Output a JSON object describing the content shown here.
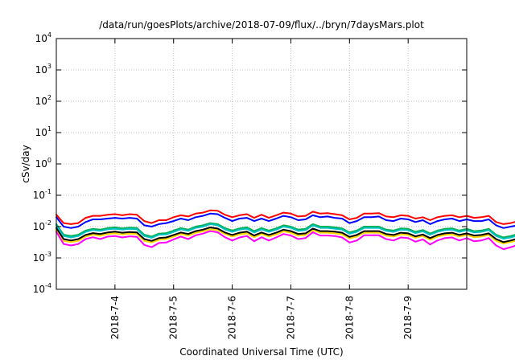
{
  "chart_data": {
    "type": "line",
    "title": "/data/run/goesPlots/archive/2018-07-09/flux/../bryn/7daysMars.plot",
    "xlabel": "Coordinated Universal Time (UTC)",
    "ylabel": "cSv/day",
    "yscale": "log",
    "ylim": [
      0.0001,
      10000
    ],
    "xlim": [
      "2018-07-03T00:00",
      "2018-07-09T23:59"
    ],
    "yticks": [
      {
        "base": "10",
        "exp": "4"
      },
      {
        "base": "10",
        "exp": "3"
      },
      {
        "base": "10",
        "exp": "2"
      },
      {
        "base": "10",
        "exp": "1"
      },
      {
        "base": "10",
        "exp": "0"
      },
      {
        "base": "10",
        "exp": "-1"
      },
      {
        "base": "10",
        "exp": "-2"
      },
      {
        "base": "10",
        "exp": "-3"
      },
      {
        "base": "10",
        "exp": "-4"
      }
    ],
    "xticks": [
      "2018-7-4",
      "2018-7-5",
      "2018-7-6",
      "2018-7-7",
      "2018-7-8",
      "2018-7-9"
    ],
    "grid": true,
    "x_start": "2018-07-03T00:00",
    "x_step_hours": 3,
    "series": [
      {
        "color": "#ff0000",
        "values": [
          0.024,
          0.013,
          0.012,
          0.013,
          0.019,
          0.022,
          0.022,
          0.024,
          0.025,
          0.023,
          0.025,
          0.024,
          0.015,
          0.013,
          0.016,
          0.016,
          0.02,
          0.023,
          0.021,
          0.026,
          0.028,
          0.033,
          0.032,
          0.024,
          0.02,
          0.023,
          0.025,
          0.019,
          0.024,
          0.019,
          0.023,
          0.028,
          0.026,
          0.021,
          0.022,
          0.03,
          0.026,
          0.027,
          0.025,
          0.023,
          0.017,
          0.019,
          0.026,
          0.026,
          0.027,
          0.021,
          0.02,
          0.023,
          0.022,
          0.018,
          0.02,
          0.016,
          0.02,
          0.022,
          0.023,
          0.02,
          0.022,
          0.019,
          0.02,
          0.022,
          0.014,
          0.012,
          0.013,
          0.015,
          0.02,
          0.022,
          0.026,
          0.023,
          0.016,
          0.016,
          0.023,
          0.021,
          0.019,
          0.016,
          0.019,
          0.016,
          0.016,
          0.02,
          0.018,
          0.022,
          0.02,
          0.016,
          0.016,
          0.014,
          0.019,
          0.016,
          0.018,
          0.015,
          0.016,
          0.019,
          0.02,
          0.017,
          0.013,
          0.012,
          0.014,
          0.018,
          0.021,
          0.02,
          0.022,
          0.021,
          0.017,
          0.02,
          0.016,
          0.018,
          0.018,
          0.02,
          0.018,
          0.02,
          0.017,
          0.02,
          0.018,
          0.016
        ]
      },
      {
        "color": "#0000ff",
        "values": [
          0.02,
          0.01,
          0.009,
          0.01,
          0.014,
          0.017,
          0.017,
          0.018,
          0.019,
          0.018,
          0.019,
          0.018,
          0.011,
          0.01,
          0.012,
          0.013,
          0.015,
          0.018,
          0.016,
          0.02,
          0.022,
          0.026,
          0.025,
          0.019,
          0.015,
          0.018,
          0.019,
          0.015,
          0.018,
          0.015,
          0.018,
          0.022,
          0.02,
          0.016,
          0.017,
          0.023,
          0.02,
          0.021,
          0.019,
          0.018,
          0.013,
          0.015,
          0.02,
          0.02,
          0.021,
          0.016,
          0.015,
          0.018,
          0.017,
          0.014,
          0.016,
          0.012,
          0.015,
          0.017,
          0.018,
          0.015,
          0.017,
          0.015,
          0.015,
          0.017,
          0.011,
          0.009,
          0.01,
          0.011,
          0.015,
          0.017,
          0.02,
          0.018,
          0.012,
          0.012,
          0.018,
          0.016,
          0.015,
          0.012,
          0.015,
          0.012,
          0.012,
          0.015,
          0.014,
          0.017,
          0.015,
          0.012,
          0.012,
          0.011,
          0.015,
          0.012,
          0.014,
          0.012,
          0.012,
          0.015,
          0.015,
          0.013,
          0.01,
          0.009,
          0.011,
          0.014,
          0.016,
          0.015,
          0.017,
          0.016,
          0.013,
          0.015,
          0.012,
          0.014,
          0.014,
          0.015,
          0.014,
          0.015,
          0.013,
          0.015,
          0.014,
          0.012
        ]
      },
      {
        "color": "#00b050",
        "values": [
          0.012,
          0.0055,
          0.005,
          0.0055,
          0.0075,
          0.0085,
          0.008,
          0.009,
          0.0095,
          0.0088,
          0.0093,
          0.009,
          0.0055,
          0.0048,
          0.006,
          0.0062,
          0.0075,
          0.009,
          0.008,
          0.01,
          0.011,
          0.013,
          0.012,
          0.009,
          0.0075,
          0.0088,
          0.0095,
          0.0072,
          0.009,
          0.0075,
          0.0088,
          0.011,
          0.01,
          0.008,
          0.0085,
          0.012,
          0.01,
          0.01,
          0.0095,
          0.0088,
          0.0065,
          0.0075,
          0.01,
          0.01,
          0.01,
          0.008,
          0.0075,
          0.0088,
          0.0085,
          0.0068,
          0.0078,
          0.006,
          0.0075,
          0.0085,
          0.0088,
          0.0075,
          0.0085,
          0.0072,
          0.0075,
          0.0085,
          0.0055,
          0.0045,
          0.005,
          0.0058,
          0.0075,
          0.0085,
          0.01,
          0.0088,
          0.0062,
          0.006,
          0.0088,
          0.008,
          0.0072,
          0.006,
          0.0072,
          0.006,
          0.006,
          0.0075,
          0.0068,
          0.0085,
          0.0075,
          0.006,
          0.006,
          0.0052,
          0.0072,
          0.006,
          0.0068,
          0.0058,
          0.006,
          0.0072,
          0.0075,
          0.0065,
          0.005,
          0.0045,
          0.0052,
          0.0068,
          0.008,
          0.0075,
          0.0085,
          0.008,
          0.0065,
          0.0075,
          0.006,
          0.0068,
          0.0068,
          0.0075,
          0.0068,
          0.0075,
          0.0065,
          0.0075,
          0.0068,
          0.006
        ]
      },
      {
        "color": "#00c0c0",
        "values": [
          0.011,
          0.005,
          0.0045,
          0.005,
          0.0068,
          0.0078,
          0.0073,
          0.0082,
          0.0086,
          0.008,
          0.0085,
          0.0082,
          0.005,
          0.0044,
          0.0055,
          0.0056,
          0.0068,
          0.0082,
          0.0073,
          0.0091,
          0.01,
          0.012,
          0.011,
          0.0082,
          0.0068,
          0.008,
          0.0086,
          0.0065,
          0.0082,
          0.0068,
          0.008,
          0.01,
          0.0091,
          0.0073,
          0.0077,
          0.011,
          0.0091,
          0.0091,
          0.0086,
          0.008,
          0.0059,
          0.0068,
          0.0091,
          0.0091,
          0.0091,
          0.0073,
          0.0068,
          0.008,
          0.0077,
          0.0062,
          0.0071,
          0.0055,
          0.0068,
          0.0077,
          0.008,
          0.0068,
          0.0077,
          0.0065,
          0.0068,
          0.0077,
          0.005,
          0.0041,
          0.0045,
          0.0053,
          0.0068,
          0.0077,
          0.0091,
          0.008,
          0.0056,
          0.0055,
          0.008,
          0.0073,
          0.0065,
          0.0055,
          0.0065,
          0.0055,
          0.0055,
          0.0068,
          0.0062,
          0.0077,
          0.0068,
          0.0055,
          0.0055,
          0.0047,
          0.0065,
          0.0055,
          0.0062,
          0.0053,
          0.0055,
          0.0065,
          0.0068,
          0.0059,
          0.0045,
          0.0041,
          0.0047,
          0.0062,
          0.0073,
          0.0068,
          0.0077,
          0.0073,
          0.0059,
          0.0068,
          0.0055,
          0.0062,
          0.0062,
          0.0068,
          0.0062,
          0.0068,
          0.0059,
          0.0068,
          0.0062,
          0.0055
        ]
      },
      {
        "color": "#ffd700",
        "values": [
          0.008,
          0.0035,
          0.0032,
          0.0035,
          0.0048,
          0.0055,
          0.0051,
          0.0058,
          0.0061,
          0.0056,
          0.006,
          0.0058,
          0.0035,
          0.0031,
          0.0038,
          0.004,
          0.0048,
          0.0058,
          0.0051,
          0.0064,
          0.007,
          0.0083,
          0.0077,
          0.0058,
          0.0048,
          0.0056,
          0.0061,
          0.0046,
          0.0058,
          0.0048,
          0.0056,
          0.007,
          0.0064,
          0.0051,
          0.0054,
          0.0077,
          0.0064,
          0.0064,
          0.0061,
          0.0056,
          0.0042,
          0.0048,
          0.0064,
          0.0064,
          0.0064,
          0.0051,
          0.0048,
          0.0056,
          0.0054,
          0.0044,
          0.005,
          0.0038,
          0.0048,
          0.0054,
          0.0056,
          0.0048,
          0.0054,
          0.0046,
          0.0048,
          0.0054,
          0.0035,
          0.0029,
          0.0032,
          0.0037,
          0.0048,
          0.0054,
          0.0064,
          0.0056,
          0.004,
          0.0038,
          0.0056,
          0.0051,
          0.0046,
          0.0038,
          0.0046,
          0.0038,
          0.0038,
          0.0048,
          0.0044,
          0.0054,
          0.0048,
          0.0038,
          0.0038,
          0.0033,
          0.0046,
          0.0038,
          0.0044,
          0.0037,
          0.0038,
          0.0046,
          0.0048,
          0.0042,
          0.0032,
          0.0029,
          0.0033,
          0.0044,
          0.0051,
          0.0048,
          0.0054,
          0.0051,
          0.0042,
          0.0048,
          0.0038,
          0.0044,
          0.0044,
          0.0048,
          0.0044,
          0.0048,
          0.0042,
          0.0048,
          0.0044,
          0.0038
        ]
      },
      {
        "color": "#000000",
        "values": [
          0.009,
          0.004,
          0.0036,
          0.004,
          0.0054,
          0.0062,
          0.0058,
          0.0065,
          0.0069,
          0.0064,
          0.0067,
          0.0065,
          0.004,
          0.0035,
          0.0043,
          0.0045,
          0.0054,
          0.0065,
          0.0058,
          0.0072,
          0.008,
          0.0094,
          0.0087,
          0.0065,
          0.0054,
          0.0064,
          0.0069,
          0.0052,
          0.0065,
          0.0054,
          0.0064,
          0.008,
          0.0072,
          0.0058,
          0.0061,
          0.0087,
          0.0072,
          0.0072,
          0.0069,
          0.0064,
          0.0047,
          0.0054,
          0.0072,
          0.0072,
          0.0072,
          0.0058,
          0.0054,
          0.0064,
          0.0061,
          0.0049,
          0.0056,
          0.0043,
          0.0054,
          0.0061,
          0.0064,
          0.0054,
          0.0061,
          0.0052,
          0.0054,
          0.0061,
          0.004,
          0.0032,
          0.0036,
          0.0042,
          0.0054,
          0.0061,
          0.0072,
          0.0064,
          0.0045,
          0.0043,
          0.0064,
          0.0058,
          0.0052,
          0.0043,
          0.0052,
          0.0043,
          0.0043,
          0.0054,
          0.0049,
          0.0061,
          0.0054,
          0.0043,
          0.0043,
          0.0037,
          0.0052,
          0.0043,
          0.0049,
          0.0042,
          0.0043,
          0.0052,
          0.0054,
          0.0047,
          0.0036,
          0.0032,
          0.0037,
          0.0049,
          0.0058,
          0.0054,
          0.0061,
          0.0058,
          0.0047,
          0.0054,
          0.0043,
          0.0049,
          0.0049,
          0.0054,
          0.0049,
          0.0054,
          0.0047,
          0.0054,
          0.0049,
          0.0043
        ]
      },
      {
        "color": "#ff00ff",
        "values": [
          0.0068,
          0.0028,
          0.0025,
          0.0028,
          0.004,
          0.0046,
          0.004,
          0.0048,
          0.005,
          0.0045,
          0.0049,
          0.0047,
          0.0026,
          0.0022,
          0.003,
          0.0031,
          0.0039,
          0.0048,
          0.004,
          0.0053,
          0.006,
          0.0072,
          0.0066,
          0.0046,
          0.0036,
          0.0045,
          0.005,
          0.0034,
          0.0046,
          0.0036,
          0.0045,
          0.0058,
          0.0052,
          0.004,
          0.0043,
          0.0066,
          0.0052,
          0.0052,
          0.005,
          0.0045,
          0.0031,
          0.0036,
          0.0053,
          0.0053,
          0.0053,
          0.004,
          0.0036,
          0.0045,
          0.0043,
          0.0033,
          0.0039,
          0.0027,
          0.0036,
          0.0043,
          0.0045,
          0.0036,
          0.0043,
          0.0034,
          0.0036,
          0.0043,
          0.0025,
          0.0019,
          0.0022,
          0.0026,
          0.0036,
          0.0043,
          0.0053,
          0.0045,
          0.0029,
          0.0027,
          0.0045,
          0.004,
          0.0034,
          0.0027,
          0.0034,
          0.0027,
          0.0027,
          0.0036,
          0.0033,
          0.0043,
          0.0036,
          0.0027,
          0.0027,
          0.0023,
          0.0034,
          0.0027,
          0.0033,
          0.0026,
          0.0027,
          0.0034,
          0.0036,
          0.0031,
          0.0022,
          0.0019,
          0.0023,
          0.0033,
          0.004,
          0.0036,
          0.0043,
          0.004,
          0.0031,
          0.0036,
          0.0027,
          0.0033,
          0.0033,
          0.0036,
          0.0033,
          0.0036,
          0.0031,
          0.0036,
          0.0033,
          0.0027
        ]
      }
    ]
  }
}
